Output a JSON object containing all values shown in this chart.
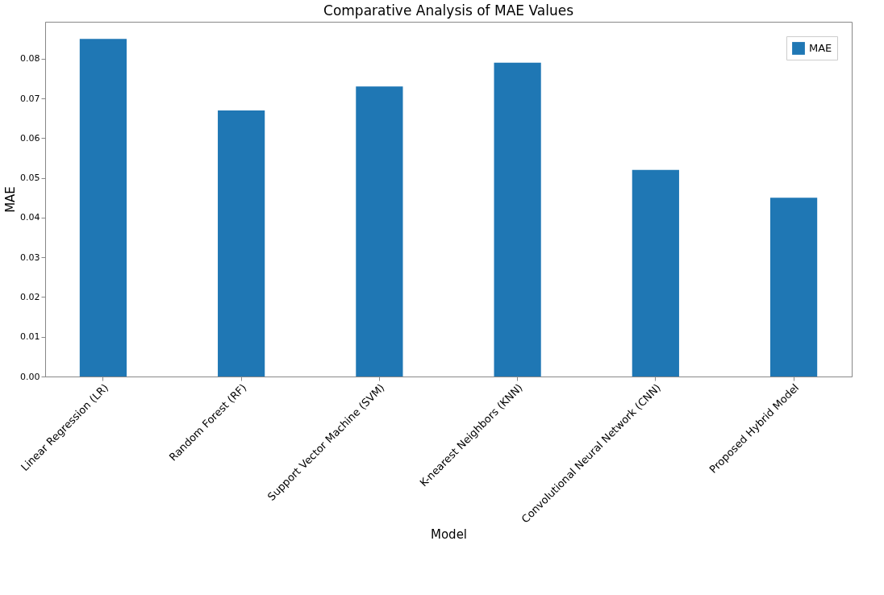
{
  "chart_data": {
    "type": "bar",
    "title": "Comparative Analysis of MAE Values",
    "xlabel": "Model",
    "ylabel": "MAE",
    "categories": [
      "Linear Regression (LR)",
      "Random Forest (RF)",
      "Support Vector Machine (SVM)",
      "K-nearest Neighbors (KNN)",
      "Convolutional Neural Network (CNN)",
      "Proposed Hybrid Model"
    ],
    "series": [
      {
        "name": "MAE",
        "color": "#1f77b4",
        "values": [
          0.085,
          0.067,
          0.073,
          0.079,
          0.052,
          0.045
        ]
      }
    ],
    "ylim": [
      0,
      0.0893
    ],
    "yticks": [
      {
        "value": 0,
        "label": "0.00"
      },
      {
        "value": 0.01,
        "label": "0.01"
      },
      {
        "value": 0.02,
        "label": "0.02"
      },
      {
        "value": 0.03,
        "label": "0.03"
      },
      {
        "value": 0.04,
        "label": "0.04"
      },
      {
        "value": 0.05,
        "label": "0.05"
      },
      {
        "value": 0.06,
        "label": "0.06"
      },
      {
        "value": 0.07,
        "label": "0.07"
      },
      {
        "value": 0.08,
        "label": "0.08"
      }
    ],
    "grid": false,
    "legend": "top right"
  }
}
